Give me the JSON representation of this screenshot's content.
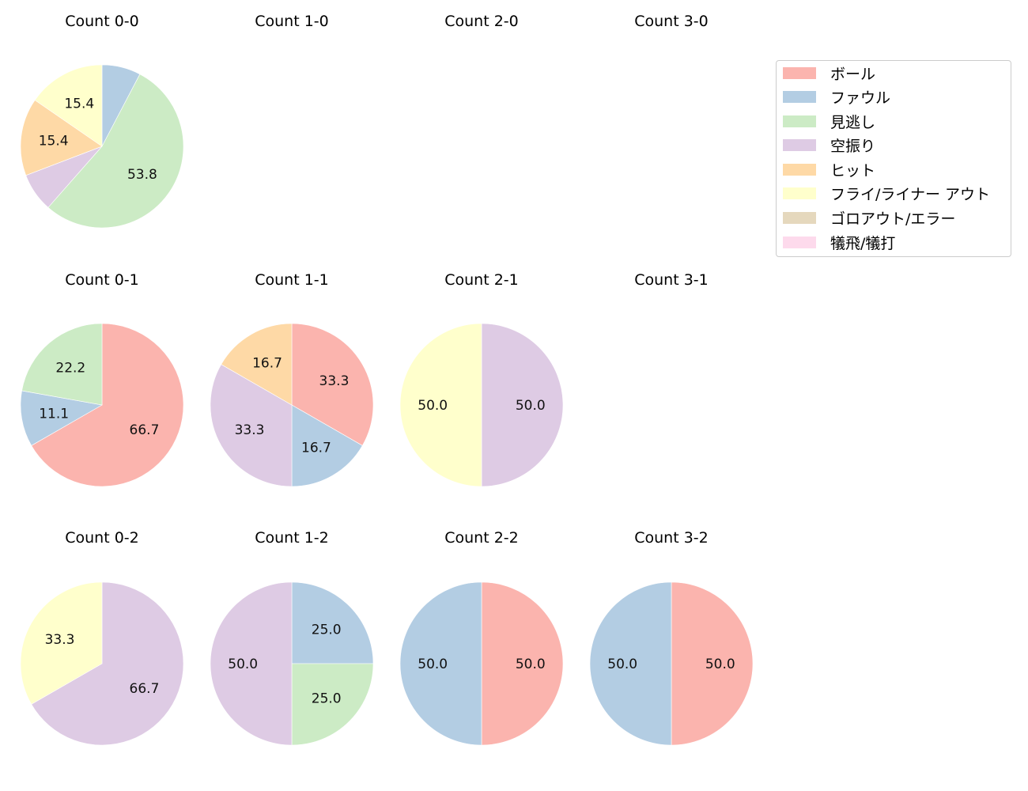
{
  "legend": {
    "items": [
      {
        "label": "ボール",
        "color": "#fbb4ae"
      },
      {
        "label": "ファウル",
        "color": "#b3cde3"
      },
      {
        "label": "見逃し",
        "color": "#ccebc5"
      },
      {
        "label": "空振り",
        "color": "#decbe4"
      },
      {
        "label": "ヒット",
        "color": "#fed9a6"
      },
      {
        "label": "フライ/ライナー アウト",
        "color": "#ffffcc"
      },
      {
        "label": "ゴロアウト/エラー",
        "color": "#e5d8bd"
      },
      {
        "label": "犠飛/犠打",
        "color": "#fddaec"
      }
    ]
  },
  "chart_data": {
    "type": "pie",
    "categories": [
      "ボール",
      "ファウル",
      "見逃し",
      "空振り",
      "ヒット",
      "フライ/ライナー アウト",
      "ゴロアウト/エラー",
      "犠飛/犠打"
    ],
    "colors": [
      "#fbb4ae",
      "#b3cde3",
      "#ccebc5",
      "#decbe4",
      "#fed9a6",
      "#ffffcc",
      "#e5d8bd",
      "#fddaec"
    ],
    "direction": "clockwise from 12 o'clock",
    "label_threshold_note": "labels shown for slices >= ~10%",
    "charts": [
      {
        "title": "Count 0-0",
        "row": 0,
        "col": 0,
        "values": [
          0,
          7.7,
          53.8,
          7.7,
          15.4,
          15.4,
          0,
          0
        ],
        "labels": [
          "",
          "",
          "53.8",
          "",
          "15.4",
          "15.4",
          "",
          ""
        ]
      },
      {
        "title": "Count 1-0",
        "row": 0,
        "col": 1,
        "values": []
      },
      {
        "title": "Count 2-0",
        "row": 0,
        "col": 2,
        "values": []
      },
      {
        "title": "Count 3-0",
        "row": 0,
        "col": 3,
        "values": []
      },
      {
        "title": "Count 0-1",
        "row": 1,
        "col": 0,
        "values": [
          66.7,
          11.1,
          22.2,
          0,
          0,
          0,
          0,
          0
        ],
        "labels": [
          "66.7",
          "11.1",
          "22.2",
          "",
          "",
          "",
          "",
          ""
        ]
      },
      {
        "title": "Count 1-1",
        "row": 1,
        "col": 1,
        "values": [
          33.3,
          16.7,
          0,
          33.3,
          16.7,
          0,
          0,
          0
        ],
        "labels": [
          "33.3",
          "16.7",
          "",
          "33.3",
          "16.7",
          "",
          "",
          ""
        ]
      },
      {
        "title": "Count 2-1",
        "row": 1,
        "col": 2,
        "values": [
          0,
          0,
          0,
          50.0,
          0,
          50.0,
          0,
          0
        ],
        "labels": [
          "",
          "",
          "",
          "50.0",
          "",
          "50.0",
          "",
          ""
        ]
      },
      {
        "title": "Count 3-1",
        "row": 1,
        "col": 3,
        "values": []
      },
      {
        "title": "Count 0-2",
        "row": 2,
        "col": 0,
        "values": [
          0,
          0,
          0,
          66.7,
          0,
          33.3,
          0,
          0
        ],
        "labels": [
          "",
          "",
          "",
          "66.7",
          "",
          "33.3",
          "",
          ""
        ]
      },
      {
        "title": "Count 1-2",
        "row": 2,
        "col": 1,
        "values": [
          0,
          25.0,
          25.0,
          50.0,
          0,
          0,
          0,
          0
        ],
        "labels": [
          "",
          "25.0",
          "25.0",
          "50.0",
          "",
          "",
          "",
          ""
        ]
      },
      {
        "title": "Count 2-2",
        "row": 2,
        "col": 2,
        "values": [
          50.0,
          50.0,
          0,
          0,
          0,
          0,
          0,
          0
        ],
        "labels": [
          "50.0",
          "50.0",
          "",
          "",
          "",
          "",
          "",
          ""
        ]
      },
      {
        "title": "Count 3-2",
        "row": 2,
        "col": 3,
        "values": [
          50.0,
          50.0,
          0,
          0,
          0,
          0,
          0,
          0
        ],
        "labels": [
          "50.0",
          "50.0",
          "",
          "",
          "",
          "",
          "",
          ""
        ]
      }
    ]
  }
}
